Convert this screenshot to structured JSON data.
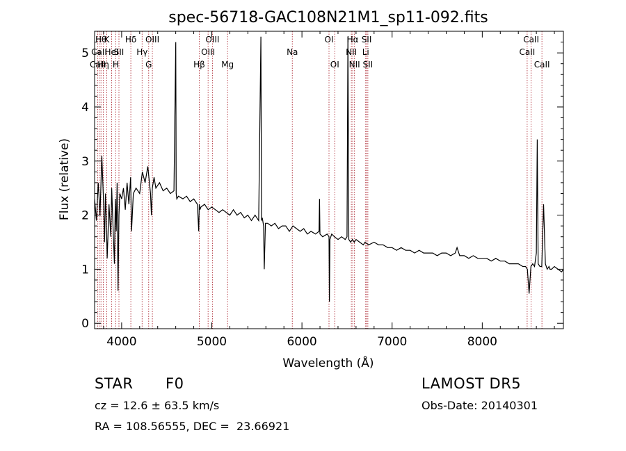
{
  "chart_data": {
    "type": "line",
    "title": "spec-56718-GAC108N21M1_sp11-092.fits",
    "xlabel": "Wavelength (Å)",
    "ylabel": "Flux (relative)",
    "xlim": [
      3700,
      8900
    ],
    "ylim": [
      -0.1,
      5.4
    ],
    "xticks": [
      4000,
      5000,
      6000,
      7000,
      8000
    ],
    "yticks": [
      0,
      1,
      2,
      3,
      4,
      5
    ],
    "series": [
      {
        "x": [
          3700,
          3720,
          3740,
          3760,
          3780,
          3800,
          3810,
          3820,
          3830,
          3840,
          3860,
          3880,
          3890,
          3900,
          3920,
          3930,
          3940,
          3950,
          3960,
          3970,
          3980,
          4000,
          4020,
          4040,
          4060,
          4080,
          4100,
          4110,
          4130,
          4160,
          4200,
          4230,
          4260,
          4290,
          4320,
          4330,
          4340,
          4360,
          4380,
          4420,
          4460,
          4500,
          4540,
          4580,
          4600,
          4605,
          4612,
          4630,
          4680,
          4720,
          4760,
          4800,
          4840,
          4855,
          4861,
          4868,
          4880,
          4920,
          4960,
          5000,
          5040,
          5080,
          5120,
          5160,
          5200,
          5240,
          5280,
          5320,
          5360,
          5400,
          5440,
          5480,
          5520,
          5545,
          5552,
          5560,
          5575,
          5582,
          5595,
          5620,
          5660,
          5700,
          5740,
          5780,
          5820,
          5860,
          5900,
          5940,
          5980,
          6020,
          6060,
          6100,
          6150,
          6190,
          6195,
          6200,
          6230,
          6280,
          6300,
          6305,
          6310,
          6330,
          6360,
          6400,
          6440,
          6480,
          6500,
          6510,
          6520,
          6540,
          6560,
          6580,
          6600,
          6640,
          6680,
          6700,
          6740,
          6800,
          6850,
          6900,
          6950,
          7000,
          7050,
          7100,
          7150,
          7200,
          7250,
          7300,
          7350,
          7400,
          7450,
          7500,
          7550,
          7600,
          7650,
          7700,
          7720,
          7750,
          7800,
          7850,
          7900,
          7950,
          8000,
          8050,
          8100,
          8150,
          8200,
          8250,
          8300,
          8350,
          8400,
          8450,
          8480,
          8500,
          8520,
          8540,
          8560,
          8580,
          8600,
          8610,
          8620,
          8640,
          8660,
          8680,
          8700,
          8720,
          8740,
          8750,
          8770,
          8800,
          8840,
          8880,
          8900
        ],
        "y": [
          2.3,
          1.9,
          2.6,
          2.0,
          3.1,
          2.2,
          1.5,
          2.4,
          1.9,
          1.2,
          2.2,
          1.6,
          2.5,
          2.0,
          1.1,
          2.3,
          1.7,
          2.6,
          0.6,
          2.0,
          2.4,
          2.3,
          2.5,
          2.1,
          2.6,
          2.2,
          2.7,
          1.7,
          2.4,
          2.5,
          2.4,
          2.8,
          2.6,
          2.9,
          2.4,
          2.0,
          2.5,
          2.7,
          2.5,
          2.6,
          2.45,
          2.5,
          2.4,
          2.45,
          5.2,
          2.4,
          2.3,
          2.35,
          2.3,
          2.35,
          2.25,
          2.3,
          2.2,
          1.7,
          2.2,
          2.1,
          2.15,
          2.2,
          2.1,
          2.15,
          2.1,
          2.05,
          2.1,
          2.05,
          2.0,
          2.1,
          2.0,
          2.05,
          1.95,
          2.0,
          1.9,
          2.0,
          1.9,
          5.3,
          1.9,
          1.95,
          1.8,
          1.0,
          1.85,
          1.85,
          1.8,
          1.85,
          1.75,
          1.8,
          1.8,
          1.7,
          1.8,
          1.75,
          1.7,
          1.75,
          1.65,
          1.7,
          1.65,
          1.7,
          2.3,
          1.65,
          1.6,
          1.65,
          1.6,
          0.4,
          1.55,
          1.65,
          1.6,
          1.55,
          1.6,
          1.55,
          1.6,
          5.3,
          1.55,
          1.5,
          1.55,
          1.5,
          1.55,
          1.5,
          1.45,
          1.5,
          1.45,
          1.5,
          1.45,
          1.45,
          1.4,
          1.4,
          1.35,
          1.4,
          1.35,
          1.35,
          1.3,
          1.35,
          1.3,
          1.3,
          1.3,
          1.25,
          1.3,
          1.3,
          1.25,
          1.3,
          1.4,
          1.25,
          1.25,
          1.2,
          1.25,
          1.2,
          1.2,
          1.2,
          1.15,
          1.2,
          1.15,
          1.15,
          1.1,
          1.1,
          1.1,
          1.05,
          1.05,
          1.0,
          0.55,
          1.05,
          1.1,
          1.05,
          1.3,
          3.4,
          1.1,
          1.05,
          1.05,
          2.2,
          1.1,
          1.0,
          1.05,
          1.0,
          1.0,
          1.05,
          1.0,
          0.95,
          1.0
        ]
      }
    ],
    "lines": [
      {
        "x": 3734,
        "label": "CaII",
        "row": 2
      },
      {
        "x": 3750,
        "label": "CaII",
        "row": 1
      },
      {
        "x": 3771,
        "label": "Hθ",
        "row": 0
      },
      {
        "x": 3797,
        "label": "Hη",
        "row": 2
      },
      {
        "x": 3835,
        "label": "K",
        "row": 0
      },
      {
        "x": 3889,
        "label": "HeI",
        "row": 1
      },
      {
        "x": 3934,
        "label": "H",
        "row": 2
      },
      {
        "x": 3970,
        "label": "SII",
        "row": 1
      },
      {
        "x": 4102,
        "label": "Hδ",
        "row": 0
      },
      {
        "x": 4227,
        "label": "Hγ",
        "row": 1
      },
      {
        "x": 4300,
        "label": "G",
        "row": 2
      },
      {
        "x": 4341,
        "label": "OIII",
        "row": 0
      },
      {
        "x": 4861,
        "label": "Hβ",
        "row": 2
      },
      {
        "x": 4959,
        "label": "OIII",
        "row": 1
      },
      {
        "x": 5007,
        "label": "OIII",
        "row": 0
      },
      {
        "x": 5175,
        "label": "Mg",
        "row": 2
      },
      {
        "x": 5893,
        "label": "Na",
        "row": 1
      },
      {
        "x": 6300,
        "label": "OI",
        "row": 0
      },
      {
        "x": 6364,
        "label": "OI",
        "row": 2
      },
      {
        "x": 6548,
        "label": "NII",
        "row": 1
      },
      {
        "x": 6563,
        "label": "Hα",
        "row": 0
      },
      {
        "x": 6583,
        "label": "NII",
        "row": 2
      },
      {
        "x": 6707,
        "label": "Li",
        "row": 1
      },
      {
        "x": 6717,
        "label": "SII",
        "row": 0
      },
      {
        "x": 6731,
        "label": "SII",
        "row": 2
      },
      {
        "x": 8498,
        "label": "CaII",
        "row": 1
      },
      {
        "x": 8542,
        "label": "CaII",
        "row": 0
      },
      {
        "x": 8662,
        "label": "CaII",
        "row": 2
      }
    ]
  },
  "info": {
    "class": "STAR",
    "subclass": "F0",
    "survey": "LAMOST DR5",
    "redshift": "cz = 12.6 ± 63.5 km/s",
    "obs_date": "Obs-Date: 20140301",
    "coords": "RA = 108.56555, DEC =  23.66921"
  }
}
